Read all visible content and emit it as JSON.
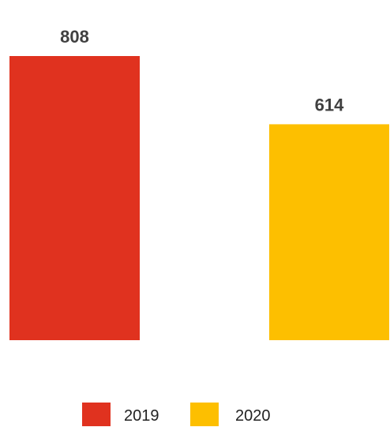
{
  "chart_data": {
    "type": "bar",
    "categories": [
      "2019",
      "2020"
    ],
    "values": [
      808,
      614
    ],
    "colors": [
      "#e0321f",
      "#fdbf00"
    ],
    "ylim": [
      0,
      808
    ],
    "grid": false,
    "legend": {
      "placement": "bottom",
      "entries": [
        "2019",
        "2020"
      ]
    }
  }
}
